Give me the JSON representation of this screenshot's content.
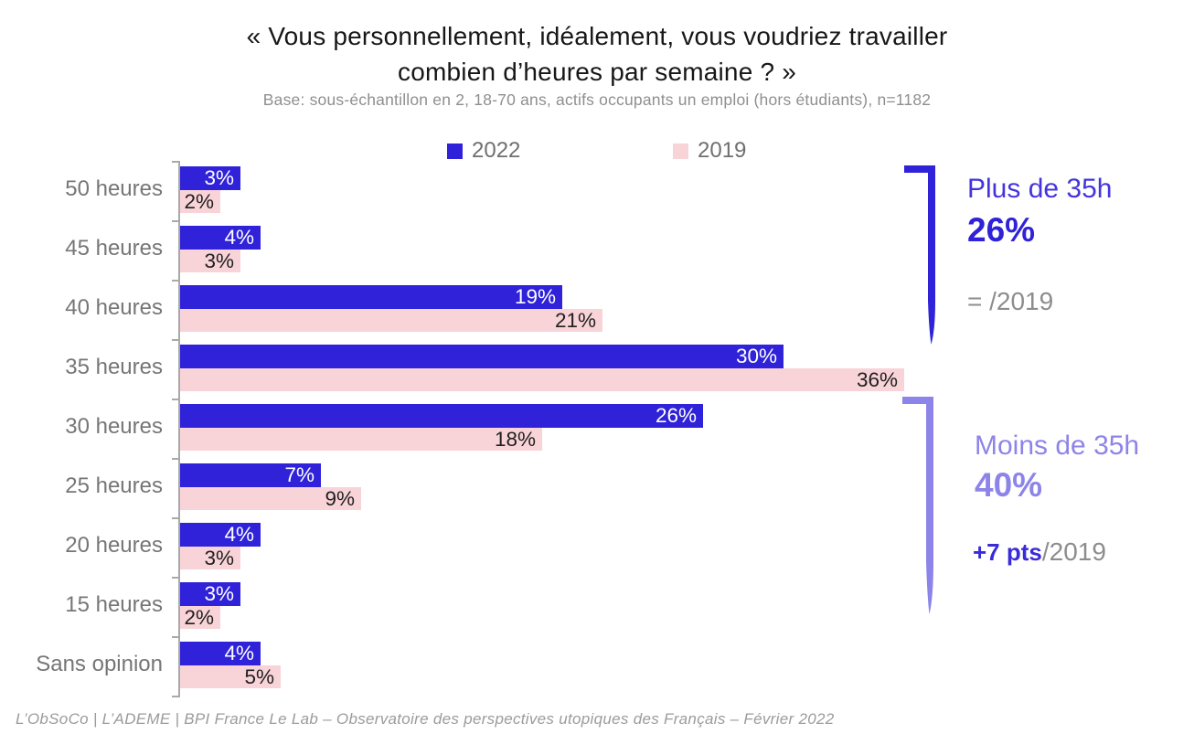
{
  "title": {
    "line1": "« Vous personnellement, idéalement, vous voudriez travailler",
    "line2": "combien d’heures par semaine ? »",
    "subtitle": "Base: sous-échantillon en 2, 18-70 ans, actifs occupants un emploi (hors étudiants), n=1182"
  },
  "legend": {
    "items": [
      {
        "label": "2022",
        "color": "#2f22d8"
      },
      {
        "label": "2019",
        "color": "#f8d3d8"
      }
    ]
  },
  "chart_data": {
    "type": "bar",
    "orientation": "horizontal",
    "title": "« Vous personnellement, idéalement, vous voudriez travailler combien d’heures par semaine ? »",
    "categories": [
      "50 heures",
      "45 heures",
      "40 heures",
      "35 heures",
      "30 heures",
      "25 heures",
      "20 heures",
      "15 heures",
      "Sans opinion"
    ],
    "series": [
      {
        "name": "2022",
        "color": "#2f22d8",
        "label_color": "#ffffff",
        "values": [
          3,
          4,
          19,
          30,
          26,
          7,
          4,
          3,
          4
        ]
      },
      {
        "name": "2019",
        "color": "#f8d3d8",
        "label_color": "#1f1f1f",
        "values": [
          2,
          3,
          21,
          36,
          18,
          9,
          3,
          2,
          5
        ]
      }
    ],
    "value_suffix": "%",
    "xlim": [
      0,
      36
    ],
    "grid": false,
    "legend_position": "top",
    "data_labels": "inside-end"
  },
  "annotations": {
    "plus": {
      "label": "Plus de 35h",
      "value": "26%",
      "delta": "= /2019",
      "bracket_color": "#2f22d8"
    },
    "moins": {
      "label": "Moins de 35h",
      "value": "40%",
      "delta_highlight": "+7 pts",
      "delta_rest": "/2019",
      "bracket_color": "#8d84ea"
    }
  },
  "footer": "L’ObSoCo | L’ADEME | BPI France Le Lab – Observatoire des perspectives utopiques des Français – Février 2022"
}
